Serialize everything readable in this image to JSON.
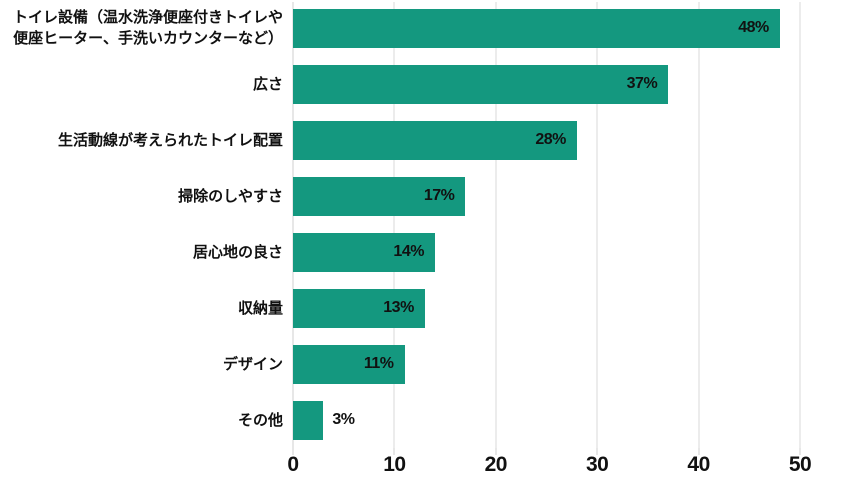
{
  "chart_data": {
    "type": "bar",
    "orientation": "horizontal",
    "title": "",
    "xlabel": "",
    "ylabel": "",
    "categories": [
      "トイレ設備（温水洗浄便座付きトイレや\n便座ヒーター、手洗いカウンターなど）",
      "広さ",
      "生活動線が考えられたトイレ配置",
      "掃除のしやすさ",
      "居心地の良さ",
      "収納量",
      "デザイン",
      "その他"
    ],
    "values": [
      48,
      37,
      28,
      17,
      14,
      13,
      11,
      3
    ],
    "value_labels": [
      "48%",
      "37%",
      "28%",
      "17%",
      "14%",
      "13%",
      "11%",
      "3%"
    ],
    "xlim": [
      0,
      50
    ],
    "xticks": [
      0,
      10,
      20,
      30,
      40,
      50
    ],
    "grid": "vertical-gridlines",
    "legend": "none",
    "colors": {
      "bar": "#14987F",
      "text": "#111111",
      "gridline": "#d9d9d9",
      "axis_line": "#cfcfcf",
      "background": "#ffffff"
    }
  }
}
